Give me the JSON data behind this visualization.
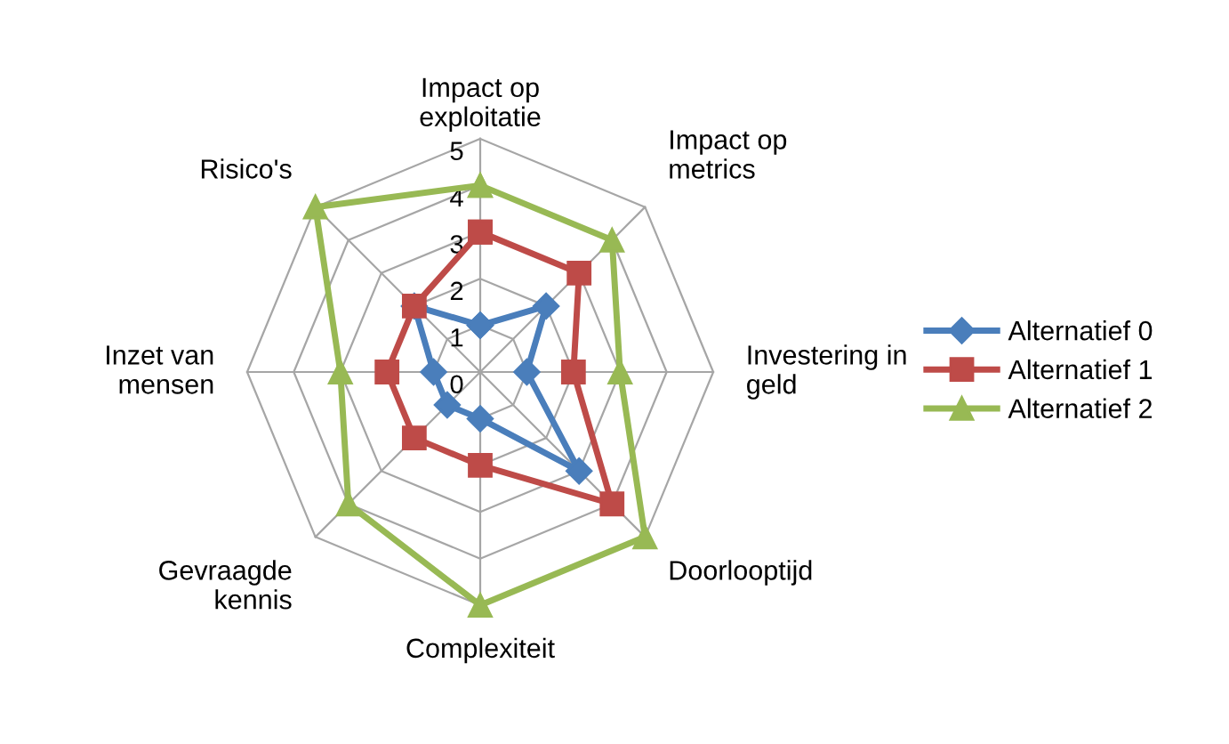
{
  "chart_data": {
    "type": "radar",
    "categories": [
      "Impact op\nexploitatie",
      "Impact op\nmetrics",
      "Investering in\ngeld",
      "Doorlooptijd",
      "Complexiteit",
      "Gevraagde\nkennis",
      "Inzet van\nmensen",
      "Risico's"
    ],
    "series": [
      {
        "name": "Alternatief 0",
        "color": "#4a7ebb",
        "marker": "diamond",
        "values": [
          1,
          2,
          1,
          3,
          1,
          1,
          1,
          2
        ]
      },
      {
        "name": "Alternatief 1",
        "color": "#be4b48",
        "marker": "square",
        "values": [
          3,
          3,
          2,
          4,
          2,
          2,
          2,
          2
        ]
      },
      {
        "name": "Alternatief 2",
        "color": "#98b954",
        "marker": "triangle",
        "values": [
          4,
          4,
          3,
          5,
          5,
          4,
          3,
          5
        ]
      }
    ],
    "ylim": [
      0,
      5
    ],
    "yticks": [
      0,
      1,
      2,
      3,
      4,
      5
    ],
    "grid": true,
    "legend": "right",
    "line_style": "solid"
  }
}
